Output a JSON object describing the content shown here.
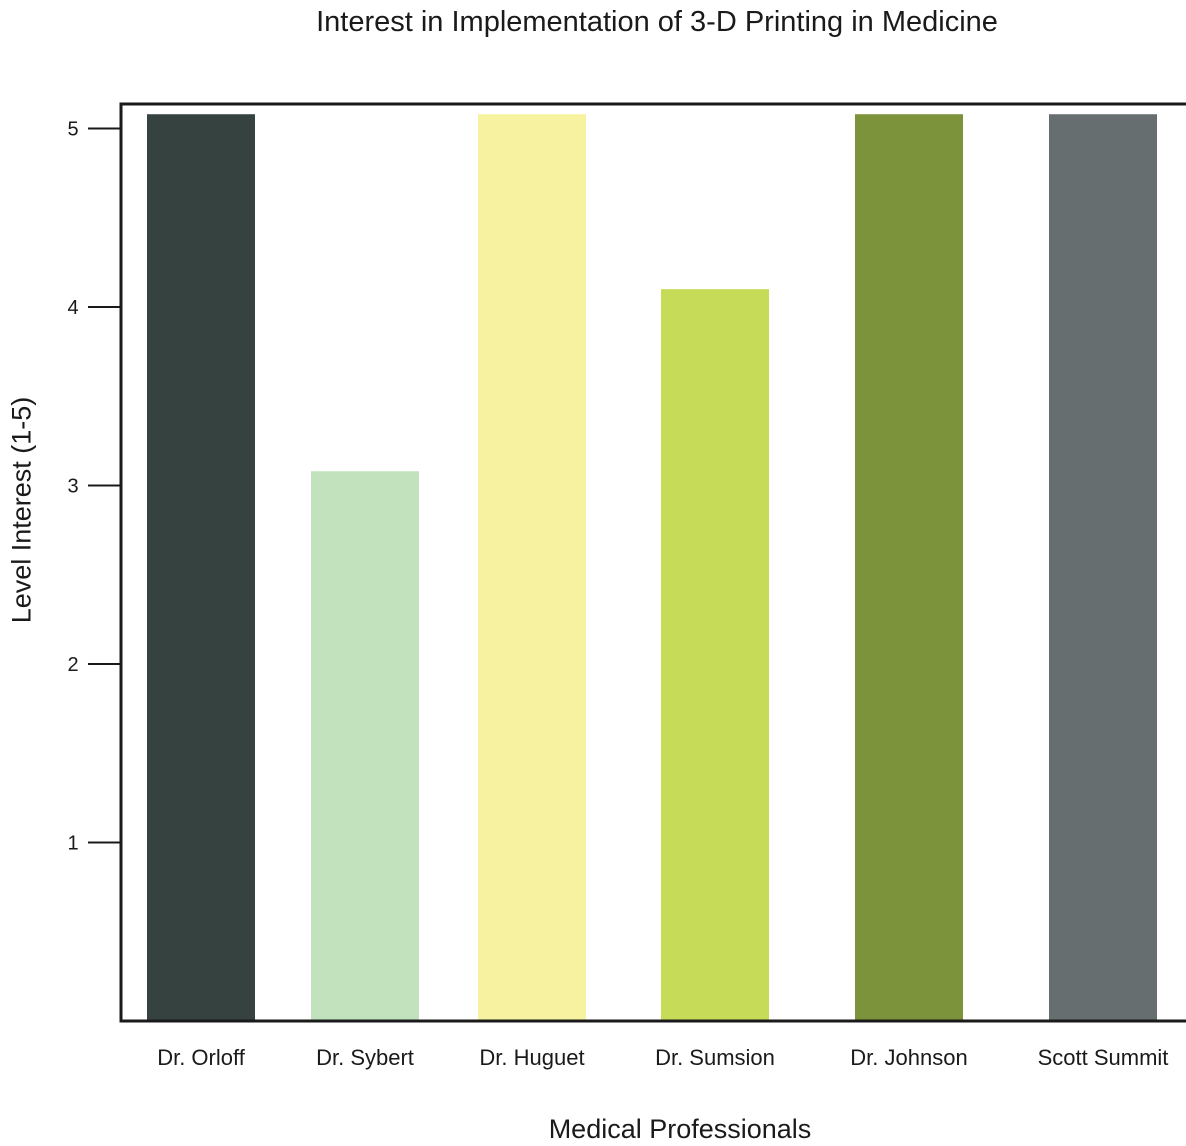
{
  "chart_data": {
    "type": "bar",
    "title": "Interest in Implementation of 3-D Printing in Medicine",
    "xlabel": "Medical Professionals",
    "ylabel": "Level Interest (1-5)",
    "categories": [
      "Dr. Orloff",
      "Dr. Sybert",
      "Dr. Huguet",
      "Dr. Sumsion",
      "Dr. Johnson",
      "Scott Summit"
    ],
    "values": [
      5.08,
      3.08,
      5.08,
      4.1,
      5.08,
      5.08
    ],
    "colors": [
      "#364240",
      "#c2e1bd",
      "#f7f29f",
      "#c6dc58",
      "#7c933b",
      "#676e6f"
    ],
    "yticks": [
      1,
      2,
      3,
      4,
      5
    ],
    "ylim": [
      0,
      5.15
    ],
    "grid": false,
    "legend": "none"
  }
}
